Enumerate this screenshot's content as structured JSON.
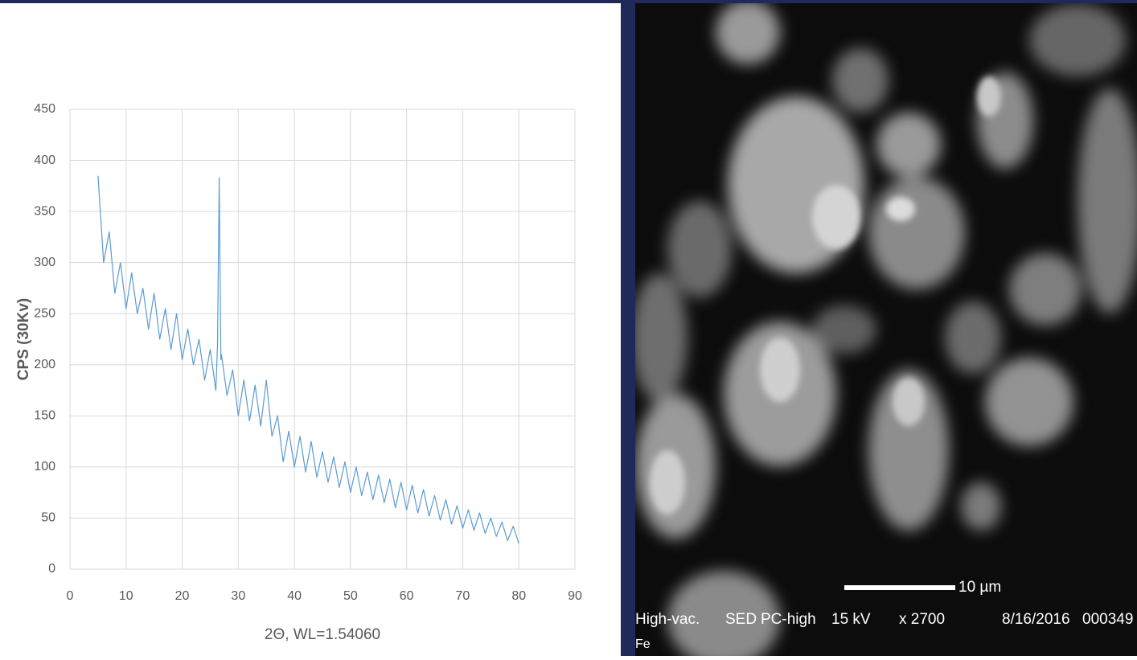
{
  "chart_data": {
    "type": "line",
    "y_label": "CPS (30Kv)",
    "x_label": "2Θ, WL=1.54060",
    "xlim": [
      0,
      90
    ],
    "xticks": [
      0,
      10,
      20,
      30,
      40,
      50,
      60,
      70,
      80,
      90
    ],
    "ylim": [
      0,
      450
    ],
    "yticks": [
      0,
      50,
      100,
      150,
      200,
      250,
      300,
      350,
      400,
      450
    ],
    "grid": true,
    "series": [
      {
        "color": "#5b9bd5",
        "x": [
          5,
          6,
          7,
          8,
          9,
          10,
          11,
          12,
          13,
          14,
          15,
          16,
          17,
          18,
          19,
          20,
          21,
          22,
          23,
          24,
          25,
          26,
          26.3,
          26.6,
          26.9,
          27,
          28,
          29,
          30,
          31,
          32,
          33,
          34,
          35,
          36,
          37,
          38,
          39,
          40,
          41,
          42,
          43,
          44,
          45,
          46,
          47,
          48,
          49,
          50,
          51,
          52,
          53,
          54,
          55,
          56,
          57,
          58,
          59,
          60,
          61,
          62,
          63,
          64,
          65,
          66,
          67,
          68,
          69,
          70,
          71,
          72,
          73,
          74,
          75,
          76,
          77,
          78,
          79,
          80
        ],
        "values": [
          385,
          300,
          330,
          270,
          300,
          255,
          290,
          250,
          275,
          235,
          270,
          225,
          255,
          215,
          250,
          205,
          235,
          200,
          225,
          185,
          215,
          175,
          220,
          383,
          205,
          210,
          170,
          195,
          150,
          185,
          145,
          180,
          140,
          185,
          130,
          150,
          105,
          135,
          100,
          130,
          95,
          125,
          90,
          115,
          85,
          110,
          80,
          105,
          75,
          100,
          72,
          95,
          68,
          92,
          65,
          88,
          60,
          85,
          58,
          82,
          55,
          78,
          52,
          72,
          48,
          68,
          44,
          62,
          40,
          58,
          38,
          55,
          35,
          50,
          32,
          46,
          28,
          42,
          25
        ]
      }
    ]
  },
  "sem_image": {
    "scale_bar": "10 µm",
    "info": [
      "High-vac.",
      "SED",
      "PC-high",
      "15 kV",
      "x 2700",
      "8/16/2016",
      "000349"
    ],
    "element": "Fe"
  }
}
